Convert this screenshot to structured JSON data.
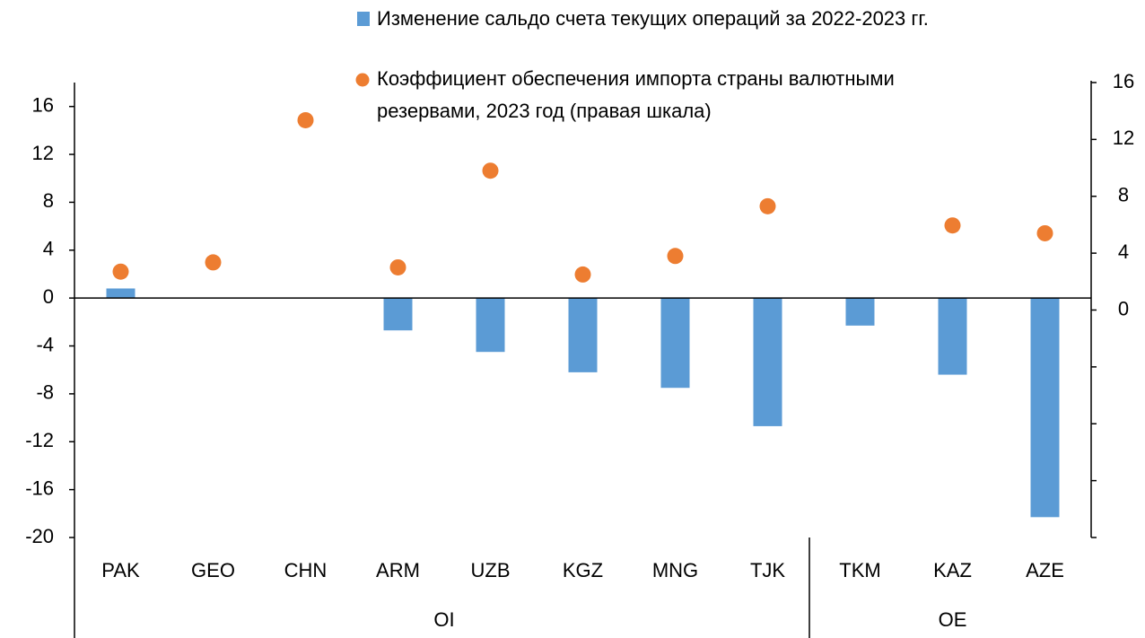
{
  "chart_data": {
    "type": "bar_scatter",
    "categories": [
      "PAK",
      "GEO",
      "CHN",
      "ARM",
      "UZB",
      "KGZ",
      "MNG",
      "TJK",
      "TKM",
      "KAZ",
      "AZE"
    ],
    "groups": [
      {
        "label": "OI",
        "count": 8
      },
      {
        "label": "OE",
        "count": 3
      }
    ],
    "series": [
      {
        "name": "Изменение сальдо счета текущих операций за 2022-2023 гг.",
        "kind": "bar",
        "color": "#5b9bd5",
        "values": [
          0.8,
          null,
          null,
          -2.7,
          -4.5,
          -6.2,
          -7.5,
          -10.7,
          -2.3,
          -6.4,
          -18.3
        ]
      },
      {
        "name": "Коэффициент обеспечения импорта страны валютными резервами, 2023 год (правая шкала)",
        "kind": "scatter",
        "color": "#ed7d31",
        "axis": "y2",
        "values": [
          2.7,
          3.35,
          13.35,
          3.0,
          9.8,
          2.5,
          3.8,
          7.3,
          null,
          5.95,
          5.4
        ]
      }
    ],
    "ylim": [
      -20,
      18
    ],
    "yticks": [
      -20,
      -16,
      -12,
      -8,
      -4,
      0,
      4,
      8,
      12,
      16
    ],
    "y2lim": [
      -16,
      16
    ],
    "y2ticks": [
      0,
      4,
      8,
      12,
      16
    ],
    "y2minor_ticks": [
      -16,
      -12,
      -8,
      -4
    ]
  }
}
